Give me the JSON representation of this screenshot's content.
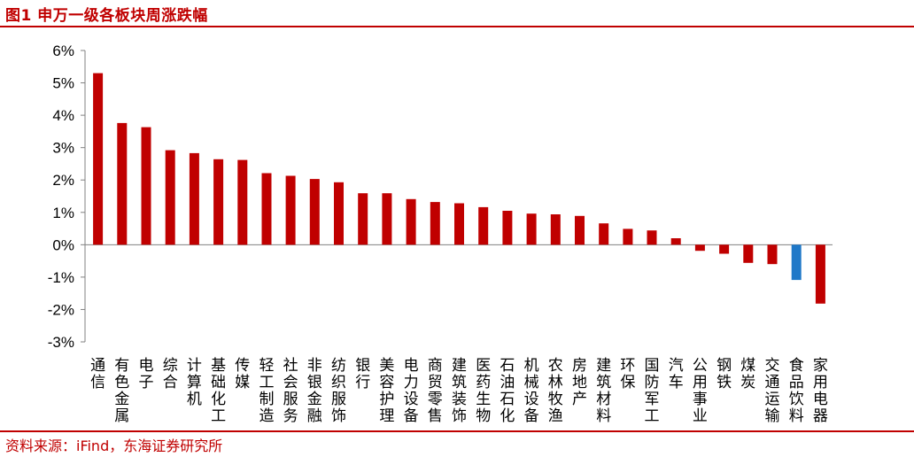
{
  "figure": {
    "title": "图1  申万一级各板块周涨跌幅",
    "source": "资料来源：iFind，东海证券研究所"
  },
  "colors": {
    "accent": "#c00000",
    "bar": "#c00000",
    "highlight_bar": "#1f78c8"
  },
  "chart_data": {
    "type": "bar",
    "title": "",
    "xlabel": "",
    "ylabel": "",
    "ylim": [
      -3,
      6
    ],
    "y_ticks": [
      "-3%",
      "-2%",
      "-1%",
      "0%",
      "1%",
      "2%",
      "3%",
      "4%",
      "5%",
      "6%"
    ],
    "grid": false,
    "legend": "none",
    "highlight_category": "食品饮料",
    "categories": [
      "通信",
      "有色金属",
      "电子",
      "综合",
      "计算机",
      "基础化工",
      "传媒",
      "轻工制造",
      "社会服务",
      "非银金融",
      "纺织服饰",
      "银行",
      "美容护理",
      "电力设备",
      "商贸零售",
      "建筑装饰",
      "医药生物",
      "石油石化",
      "机械设备",
      "农林牧渔",
      "房地产",
      "建筑材料",
      "环保",
      "国防军工",
      "汽车",
      "公用事业",
      "钢铁",
      "煤炭",
      "交通运输",
      "食品饮料",
      "家用电器"
    ],
    "values": [
      5.3,
      3.76,
      3.63,
      2.92,
      2.83,
      2.64,
      2.62,
      2.21,
      2.13,
      2.03,
      1.93,
      1.59,
      1.59,
      1.41,
      1.32,
      1.28,
      1.16,
      1.05,
      0.96,
      0.94,
      0.89,
      0.66,
      0.49,
      0.44,
      0.2,
      -0.19,
      -0.28,
      -0.56,
      -0.6,
      -1.09,
      -1.82
    ]
  }
}
